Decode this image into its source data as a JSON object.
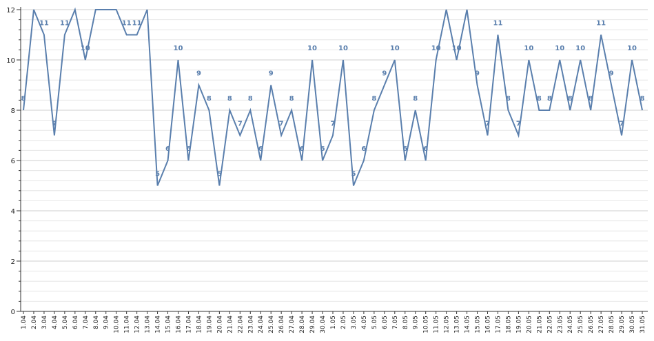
{
  "chart_data": {
    "type": "line",
    "categories": [
      "1.04",
      "2.04",
      "3.04",
      "4.04",
      "5.04",
      "6.04",
      "7.04",
      "8.04",
      "9.04",
      "10.04",
      "11.04",
      "12.04",
      "13.04",
      "14.04",
      "15.04",
      "16.04",
      "17.04",
      "18.04",
      "19.04",
      "20.04",
      "21.04",
      "22.04",
      "23.04",
      "24.04",
      "25.04",
      "26.04",
      "27.04",
      "28.04",
      "29.04",
      "30.04",
      "1.05",
      "2.05",
      "3.05",
      "4.05",
      "5.05",
      "6.05",
      "7.05",
      "8.05",
      "9.05",
      "10.05",
      "11.05",
      "12.05",
      "13.05",
      "14.05",
      "15.05",
      "16.05",
      "17.05",
      "18.05",
      "19.05",
      "20.05",
      "21.05",
      "22.05",
      "23.05",
      "24.05",
      "25.05",
      "26.05",
      "27.05",
      "28.05",
      "29.05",
      "30.05",
      "31.05"
    ],
    "series": [
      {
        "color": "#5a7fad",
        "values": [
          8,
          12,
          11,
          7,
          11,
          12,
          10,
          12,
          12,
          12,
          11,
          11,
          12,
          5,
          6,
          10,
          6,
          9,
          8,
          5,
          8,
          7,
          8,
          6,
          9,
          7,
          8,
          6,
          10,
          6,
          7,
          10,
          5,
          6,
          8,
          9,
          10,
          6,
          8,
          6,
          10,
          12,
          10,
          12,
          9,
          7,
          11,
          8,
          7,
          10,
          8,
          8,
          10,
          8,
          10,
          8,
          11,
          9,
          7,
          10,
          8
        ]
      }
    ],
    "ylim": [
      0,
      12
    ],
    "yticks": [
      0,
      2,
      4,
      6,
      8,
      10,
      12
    ],
    "grid": true
  }
}
